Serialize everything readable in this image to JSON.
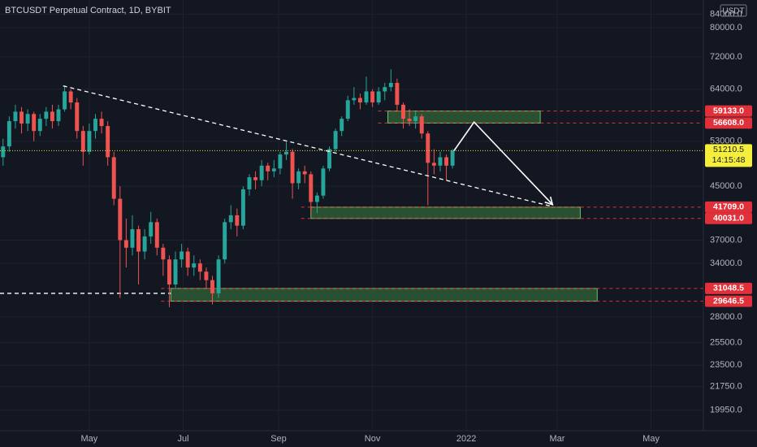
{
  "chart_data": {
    "type": "candlestick",
    "title": "BTCUSDT Perpetual Contract, 1D, BYBIT",
    "currency": "USDT",
    "log_scale": true,
    "grid": true,
    "up_color": "#26a69a",
    "down_color": "#ef5350",
    "zone_color": "#2e5a34",
    "level_color": "#e0303a",
    "xlim": [
      62,
      519
    ],
    "ylim": [
      18850,
      88500
    ],
    "xticks": [
      {
        "value": 120,
        "label": "May"
      },
      {
        "value": 181,
        "label": "Jul"
      },
      {
        "value": 243,
        "label": "Sep"
      },
      {
        "value": 304,
        "label": "Nov"
      },
      {
        "value": 365,
        "label": "2022"
      },
      {
        "value": 424,
        "label": "Mar"
      },
      {
        "value": 485,
        "label": "May"
      }
    ],
    "yticks": [
      {
        "value": 84000,
        "label": "84000.0"
      },
      {
        "value": 80000,
        "label": "80000.0"
      },
      {
        "value": 72000,
        "label": "72000.0"
      },
      {
        "value": 64000,
        "label": "64000.0"
      },
      {
        "value": 53000,
        "label": "53000.0"
      },
      {
        "value": 45000,
        "label": "45000.0"
      },
      {
        "value": 37000,
        "label": "37000.0"
      },
      {
        "value": 34000,
        "label": "34000.0"
      },
      {
        "value": 28000,
        "label": "28000.0"
      },
      {
        "value": 25500,
        "label": "25500.0"
      },
      {
        "value": 23500,
        "label": "23500.0"
      },
      {
        "value": 21750,
        "label": "21750.0"
      },
      {
        "value": 19950,
        "label": "19950.0"
      }
    ],
    "x": [
      64,
      68,
      72,
      76,
      80,
      84,
      88,
      92,
      96,
      100,
      104,
      108,
      112,
      116,
      120,
      124,
      128,
      132,
      136,
      140,
      144,
      148,
      152,
      156,
      160,
      164,
      168,
      172,
      176,
      180,
      184,
      188,
      192,
      196,
      200,
      204,
      208,
      212,
      216,
      220,
      224,
      228,
      232,
      236,
      240,
      244,
      248,
      252,
      256,
      260,
      264,
      268,
      272,
      276,
      280,
      284,
      288,
      292,
      296,
      300,
      304,
      308,
      312,
      316,
      320,
      324,
      328,
      332,
      336,
      340,
      344,
      348,
      352,
      356
    ],
    "open": [
      50000,
      52000,
      57000,
      59000,
      56500,
      58500,
      55000,
      57500,
      59000,
      57000,
      59500,
      63500,
      61000,
      55000,
      51000,
      55000,
      57500,
      56000,
      50000,
      43000,
      37000,
      36000,
      38500,
      35500,
      37500,
      39500,
      36000,
      34500,
      31500,
      34500,
      35500,
      33500,
      34000,
      33000,
      32000,
      30500,
      34500,
      39500,
      40500,
      39000,
      44500,
      46500,
      46000,
      48500,
      47500,
      48000,
      50500,
      51000,
      45500,
      47500,
      47000,
      42500,
      43500,
      48000,
      51500,
      55000,
      57500,
      61500,
      62000,
      61000,
      63500,
      61000,
      63500,
      64500,
      65500,
      60500,
      57500,
      57000,
      58000,
      54500,
      49000,
      48500,
      50000,
      48500
    ],
    "high": [
      53500,
      58000,
      60500,
      60000,
      59500,
      59000,
      58500,
      60000,
      60500,
      60500,
      64800,
      64000,
      62000,
      56000,
      56500,
      58500,
      59000,
      57000,
      51000,
      45000,
      40000,
      40500,
      39000,
      38500,
      41000,
      40000,
      36500,
      35000,
      35500,
      36500,
      36000,
      35000,
      34500,
      33500,
      32500,
      35000,
      40000,
      42000,
      41500,
      45000,
      47000,
      47500,
      49500,
      49000,
      49500,
      51000,
      52900,
      51500,
      48000,
      48500,
      47500,
      44000,
      48500,
      52000,
      55500,
      58000,
      62500,
      64500,
      63000,
      67000,
      64000,
      64500,
      65500,
      68800,
      66500,
      61000,
      59500,
      59000,
      58500,
      55000,
      51500,
      51000,
      50500,
      51500
    ],
    "low": [
      48500,
      51000,
      55500,
      54500,
      55000,
      53000,
      54000,
      56000,
      55500,
      56000,
      59000,
      59500,
      53500,
      48500,
      50500,
      53500,
      54500,
      48500,
      42000,
      30000,
      33500,
      35000,
      31500,
      34500,
      36500,
      35000,
      32500,
      29000,
      31000,
      33500,
      32500,
      32500,
      32000,
      31000,
      29300,
      30000,
      34000,
      38500,
      37500,
      38500,
      43500,
      44500,
      45000,
      46000,
      46500,
      47000,
      49500,
      43000,
      44500,
      45500,
      40700,
      40800,
      43000,
      47500,
      51000,
      54000,
      57000,
      60500,
      59500,
      60500,
      60000,
      60500,
      61500,
      63500,
      59000,
      55500,
      56000,
      55500,
      53500,
      42000,
      47000,
      47500,
      46000,
      48000
    ],
    "close": [
      52000,
      57000,
      59000,
      56500,
      58500,
      55000,
      57500,
      59000,
      57000,
      59500,
      63500,
      61000,
      55000,
      51000,
      55000,
      57500,
      56000,
      50000,
      43000,
      37000,
      36000,
      38500,
      35500,
      37500,
      39500,
      36000,
      34500,
      31500,
      34500,
      35500,
      33500,
      34000,
      33000,
      32000,
      30500,
      34500,
      39500,
      40500,
      39000,
      44500,
      46500,
      46000,
      48500,
      47500,
      48000,
      50500,
      51000,
      45500,
      47500,
      47000,
      42500,
      43500,
      48000,
      51500,
      55000,
      57500,
      61500,
      62000,
      61000,
      63500,
      61000,
      63500,
      64500,
      65500,
      60500,
      57500,
      57000,
      58000,
      54500,
      49000,
      48500,
      50000,
      48500,
      51210.5
    ],
    "last": 51210.5,
    "countdown": "14:15:48",
    "zones": [
      {
        "start": 314,
        "end": 413,
        "high": 59133,
        "low": 56608,
        "value_labels": [
          "59133.0",
          "56608.0"
        ]
      },
      {
        "start": 264,
        "end": 439,
        "high": 41709,
        "low": 40031,
        "value_labels": [
          "41709.0",
          "40031.0"
        ]
      },
      {
        "start": 173,
        "end": 450,
        "high": 31048.5,
        "low": 29646.5,
        "value_labels": [
          "31048.5",
          "29646.5"
        ]
      }
    ],
    "trendline": {
      "x": [
        103,
        421
      ],
      "y": [
        64800,
        41800
      ]
    },
    "support_line": {
      "x": [
        62,
        173
      ],
      "y": [
        30500,
        30500
      ]
    },
    "projection": {
      "x": [
        357,
        370,
        421
      ],
      "y": [
        51210.5,
        56800,
        42100
      ]
    }
  }
}
